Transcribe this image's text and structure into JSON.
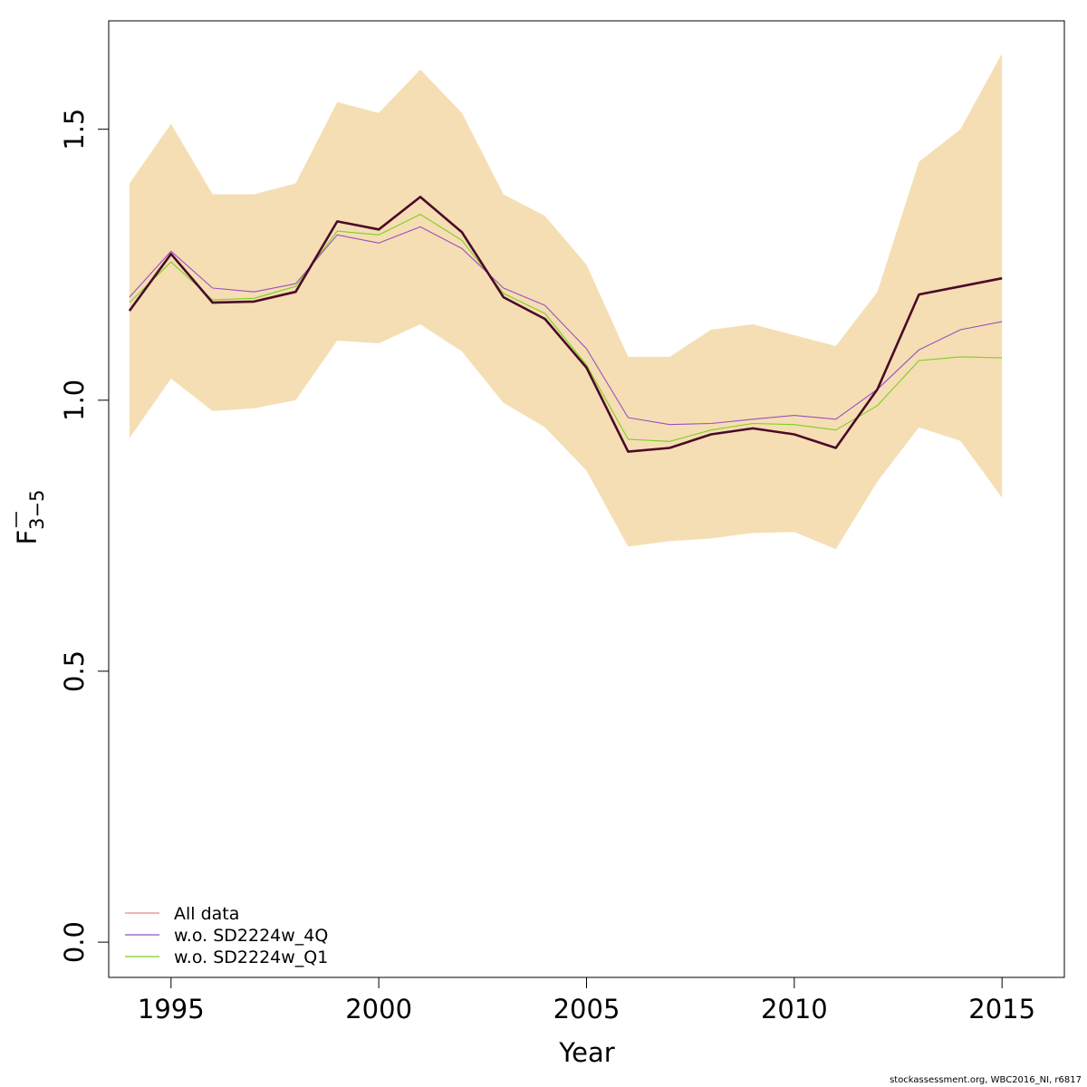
{
  "chart_data": {
    "type": "line",
    "title": "",
    "xlabel": "Year",
    "ylabel_main": "F",
    "ylabel_sub": "3−5",
    "xlim": [
      1993.5,
      2016.5
    ],
    "ylim": [
      -0.065,
      1.7
    ],
    "x_ticks": [
      1995,
      2000,
      2005,
      2010,
      2015
    ],
    "y_ticks": [
      0.0,
      0.5,
      1.0,
      1.5
    ],
    "y_tick_labels": [
      "0.0",
      "0.5",
      "1.0",
      "1.5"
    ],
    "grid": false,
    "legend_position": "bottom-left",
    "x": [
      1994,
      1995,
      1996,
      1997,
      1998,
      1999,
      2000,
      2001,
      2002,
      2003,
      2004,
      2005,
      2006,
      2007,
      2008,
      2009,
      2010,
      2011,
      2012,
      2013,
      2014,
      2015
    ],
    "band": {
      "color": "#f5deb3",
      "upper": [
        1.4,
        1.51,
        1.38,
        1.38,
        1.4,
        1.55,
        1.53,
        1.61,
        1.53,
        1.38,
        1.34,
        1.25,
        1.08,
        1.08,
        1.13,
        1.14,
        1.12,
        1.1,
        1.2,
        1.44,
        1.5,
        1.64
      ],
      "lower": [
        0.93,
        1.04,
        0.98,
        0.985,
        1.0,
        1.11,
        1.105,
        1.14,
        1.09,
        0.995,
        0.95,
        0.87,
        0.73,
        0.74,
        0.745,
        0.755,
        0.757,
        0.725,
        0.85,
        0.95,
        0.925,
        0.82
      ]
    },
    "series": [
      {
        "name": "All data",
        "legend_color": "#f08080",
        "color": "#4b0a28",
        "values": [
          1.165,
          1.27,
          1.18,
          1.182,
          1.2,
          1.33,
          1.315,
          1.375,
          1.31,
          1.19,
          1.15,
          1.06,
          0.905,
          0.912,
          0.937,
          0.948,
          0.937,
          0.912,
          1.02,
          1.195,
          1.21,
          1.225
        ]
      },
      {
        "name": "w.o. SD2224w_4Q",
        "legend_color": "#9a4fc0",
        "color": "#9a4fc0",
        "values": [
          1.19,
          1.275,
          1.207,
          1.2,
          1.215,
          1.305,
          1.29,
          1.32,
          1.28,
          1.207,
          1.175,
          1.095,
          0.968,
          0.955,
          0.957,
          0.965,
          0.972,
          0.965,
          1.02,
          1.093,
          1.13,
          1.145
        ]
      },
      {
        "name": "w.o. SD2224w_Q1",
        "legend_color": "#7cd020",
        "color": "#7cd020",
        "values": [
          1.18,
          1.255,
          1.185,
          1.188,
          1.21,
          1.312,
          1.305,
          1.343,
          1.295,
          1.197,
          1.16,
          1.065,
          0.928,
          0.924,
          0.945,
          0.957,
          0.955,
          0.945,
          0.99,
          1.073,
          1.08,
          1.078
        ]
      }
    ]
  },
  "footer": {
    "credit": "stockassessment.org, WBC2016_NI, r6817"
  }
}
